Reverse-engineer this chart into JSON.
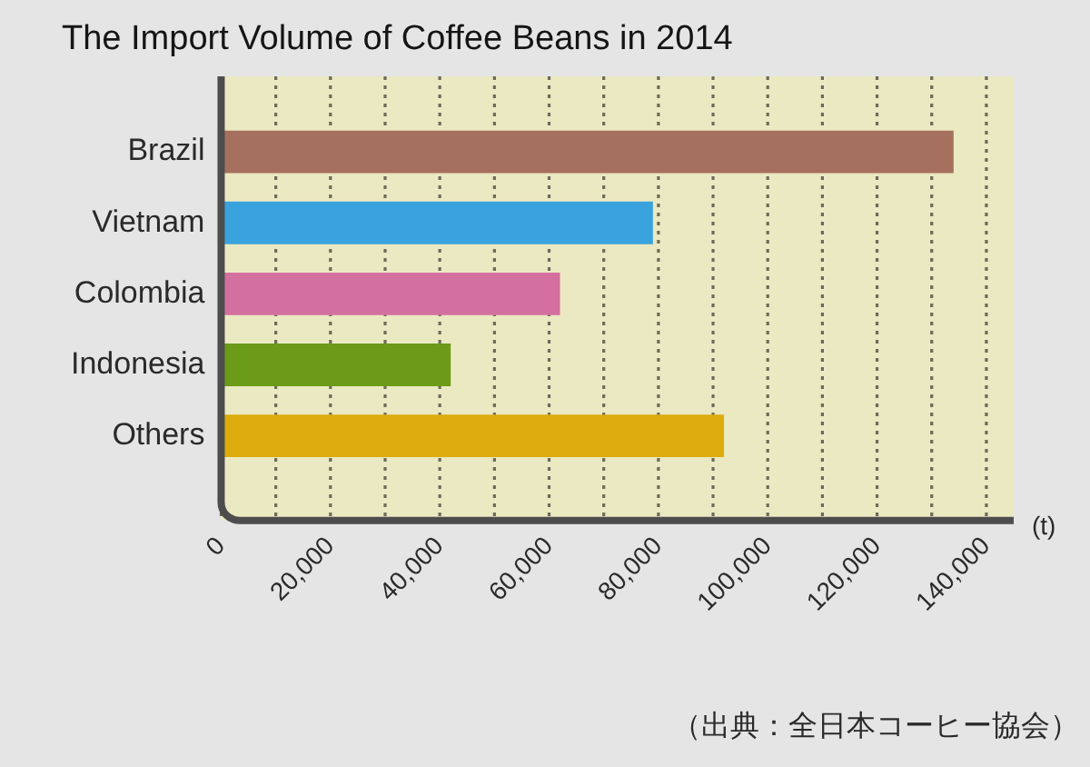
{
  "chart_data": {
    "type": "bar",
    "orientation": "horizontal",
    "title": "The Import Volume of Coffee Beans in 2014",
    "xlabel": "(t)",
    "categories": [
      "Brazil",
      "Vietnam",
      "Colombia",
      "Indonesia",
      "Others"
    ],
    "values": [
      134000,
      79000,
      62000,
      42000,
      92000
    ],
    "colors": [
      "#a6705f",
      "#3aa3de",
      "#d4709f",
      "#6b9b17",
      "#dcac0e"
    ],
    "xlim": [
      0,
      145000
    ],
    "xticks": [
      0,
      {
        "value": 10000,
        "label": null
      },
      {
        "value": 20000,
        "label": "20,000"
      },
      {
        "value": 30000,
        "label": null
      },
      {
        "value": 40000,
        "label": "40,000"
      },
      {
        "value": 50000,
        "label": null
      },
      {
        "value": 60000,
        "label": "60,000"
      },
      {
        "value": 70000,
        "label": null
      },
      {
        "value": 80000,
        "label": "80,000"
      },
      {
        "value": 90000,
        "label": null
      },
      {
        "value": 100000,
        "label": "100,000"
      },
      {
        "value": 110000,
        "label": null
      },
      {
        "value": 120000,
        "label": "120,000"
      },
      {
        "value": 130000,
        "label": null
      },
      {
        "value": 140000,
        "label": "140,000"
      }
    ],
    "grid": "x",
    "annotations": [
      "（出典：全日本コーヒー協会）"
    ]
  }
}
